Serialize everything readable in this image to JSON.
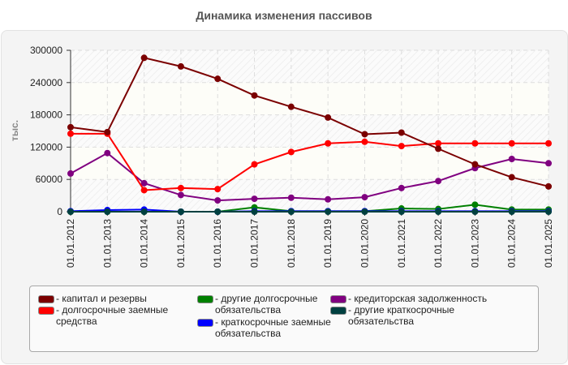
{
  "chart_data": {
    "type": "line",
    "title": "Динамика изменения пассивов",
    "xlabel": "",
    "ylabel": "тыс.",
    "ylim": [
      0,
      300000
    ],
    "yticks": [
      0,
      60000,
      120000,
      180000,
      240000,
      300000
    ],
    "ytick_labels": [
      "0",
      "60000",
      "120000",
      "180000",
      "240000",
      "300000"
    ],
    "grid": true,
    "legend_position": "bottom",
    "categories": [
      "01.01.2012",
      "01.01.2013",
      "01.01.2014",
      "01.01.2015",
      "01.01.2016",
      "01.01.2017",
      "01.01.2018",
      "01.01.2019",
      "01.01.2020",
      "01.01.2021",
      "01.01.2022",
      "01.01.2023",
      "01.01.2024",
      "01.01.2025"
    ],
    "series": [
      {
        "name": "капитал и резервы",
        "color": "#7b0000",
        "values": [
          157000,
          148000,
          286000,
          270000,
          247000,
          216000,
          195000,
          175000,
          144000,
          147000,
          117000,
          88000,
          64000,
          47000
        ]
      },
      {
        "name": "долгосрочные заемные средства",
        "color": "#ff0000",
        "values": [
          145000,
          145000,
          40000,
          44000,
          42000,
          88000,
          111000,
          127000,
          130000,
          122000,
          127000,
          127000,
          127000,
          127000
        ]
      },
      {
        "name": "другие долгосрочные обязательства",
        "color": "#008000",
        "values": [
          0,
          0,
          0,
          0,
          0,
          8000,
          1000,
          1000,
          1000,
          6000,
          5000,
          13000,
          4000,
          4000
        ]
      },
      {
        "name": "краткосрочные заемные обязательства",
        "color": "#0000ff",
        "values": [
          1000,
          3000,
          4000,
          0,
          0,
          1000,
          1000,
          1000,
          1000,
          1000,
          1000,
          1000,
          1000,
          1000
        ]
      },
      {
        "name": "кредиторская задолженность",
        "color": "#800080",
        "values": [
          71000,
          109000,
          53000,
          31000,
          21000,
          24000,
          26000,
          23000,
          27000,
          44000,
          57000,
          81000,
          98000,
          90000
        ]
      },
      {
        "name": "другие краткосрочные обязательства",
        "color": "#004040",
        "values": [
          0,
          0,
          0,
          0,
          0,
          0,
          0,
          0,
          0,
          0,
          0,
          0,
          0,
          0
        ]
      }
    ]
  },
  "legend": {
    "items": [
      {
        "label": "- капитал и резервы",
        "color": "#7b0000"
      },
      {
        "label": "- долгосрочные заемные средства",
        "color": "#ff0000"
      },
      {
        "label": "- другие долгосрочные обязательства",
        "color": "#008000"
      },
      {
        "label": "- краткосрочные заемные обязательства",
        "color": "#0000ff"
      },
      {
        "label": "- кредиторская задолженность",
        "color": "#800080"
      },
      {
        "label": "- другие краткосрочные обязательства",
        "color": "#004040"
      }
    ]
  }
}
